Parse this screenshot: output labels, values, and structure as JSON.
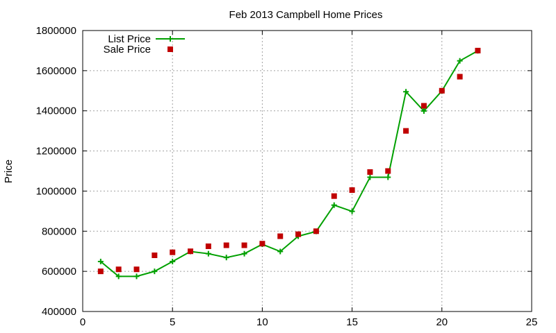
{
  "chart_data": {
    "type": "line",
    "title": "Feb 2013 Campbell Home Prices",
    "xlabel": "",
    "ylabel": "Price",
    "xlim": [
      0,
      25
    ],
    "ylim": [
      400000,
      1800000
    ],
    "x_ticks": [
      0,
      5,
      10,
      15,
      20,
      25
    ],
    "y_ticks": [
      400000,
      600000,
      800000,
      1000000,
      1200000,
      1400000,
      1600000,
      1800000
    ],
    "grid": true,
    "legend_position": "top-left",
    "series": [
      {
        "name": "List Price",
        "style": "line-with-plus-markers",
        "color": "#00a000",
        "x": [
          1,
          2,
          3,
          4,
          5,
          6,
          7,
          8,
          9,
          10,
          11,
          12,
          13,
          14,
          15,
          16,
          17,
          18,
          19,
          20,
          21,
          22
        ],
        "values": [
          649000,
          575000,
          575000,
          600000,
          649000,
          699000,
          688000,
          669000,
          688000,
          735000,
          699000,
          775000,
          799000,
          930000,
          899000,
          1069000,
          1069000,
          1495000,
          1399000,
          1499000,
          1649000,
          1699000
        ]
      },
      {
        "name": "Sale Price",
        "style": "square-markers",
        "color": "#c00000",
        "x": [
          1,
          2,
          3,
          4,
          5,
          6,
          7,
          8,
          9,
          10,
          11,
          12,
          13,
          14,
          15,
          16,
          17,
          18,
          19,
          20,
          21,
          22
        ],
        "values": [
          600000,
          610000,
          610000,
          680000,
          695000,
          700000,
          725000,
          730000,
          730000,
          738000,
          775000,
          785000,
          800000,
          975000,
          1005000,
          1095000,
          1100000,
          1300000,
          1425000,
          1500000,
          1570000,
          1700000
        ]
      }
    ]
  }
}
